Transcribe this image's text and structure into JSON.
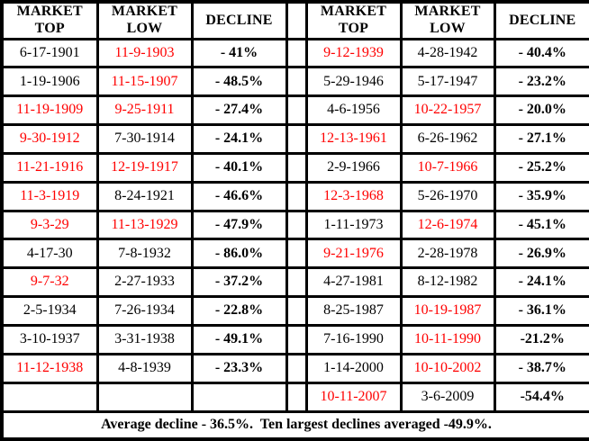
{
  "table": {
    "headers": {
      "market_top": "MARKET\nTOP",
      "market_low": "MARKET\nLOW",
      "decline": "DECLINE"
    },
    "rows": [
      {
        "cells": [
          {
            "text": "6-17-1901",
            "red": false
          },
          {
            "text": "11-9-1903",
            "red": true
          },
          {
            "text": "- 41%",
            "red": false
          },
          {
            "text": "9-12-1939",
            "red": true
          },
          {
            "text": "4-28-1942",
            "red": false
          },
          {
            "text": "- 40.4%",
            "red": false
          }
        ]
      },
      {
        "cells": [
          {
            "text": "1-19-1906",
            "red": false
          },
          {
            "text": "11-15-1907",
            "red": true
          },
          {
            "text": "- 48.5%",
            "red": false
          },
          {
            "text": "5-29-1946",
            "red": false
          },
          {
            "text": "5-17-1947",
            "red": false
          },
          {
            "text": "- 23.2%",
            "red": false
          }
        ]
      },
      {
        "cells": [
          {
            "text": "11-19-1909",
            "red": true
          },
          {
            "text": "9-25-1911",
            "red": true
          },
          {
            "text": "- 27.4%",
            "red": false
          },
          {
            "text": "4-6-1956",
            "red": false
          },
          {
            "text": "10-22-1957",
            "red": true
          },
          {
            "text": "- 20.0%",
            "red": false
          }
        ]
      },
      {
        "cells": [
          {
            "text": "9-30-1912",
            "red": true
          },
          {
            "text": "7-30-1914",
            "red": false
          },
          {
            "text": "- 24.1%",
            "red": false
          },
          {
            "text": "12-13-1961",
            "red": true
          },
          {
            "text": "6-26-1962",
            "red": false
          },
          {
            "text": "- 27.1%",
            "red": false
          }
        ]
      },
      {
        "cells": [
          {
            "text": "11-21-1916",
            "red": true
          },
          {
            "text": "12-19-1917",
            "red": true
          },
          {
            "text": "- 40.1%",
            "red": false
          },
          {
            "text": "2-9-1966",
            "red": false
          },
          {
            "text": "10-7-1966",
            "red": true
          },
          {
            "text": "- 25.2%",
            "red": false
          }
        ]
      },
      {
        "cells": [
          {
            "text": "11-3-1919",
            "red": true
          },
          {
            "text": "8-24-1921",
            "red": false
          },
          {
            "text": "- 46.6%",
            "red": false
          },
          {
            "text": "12-3-1968",
            "red": true
          },
          {
            "text": "5-26-1970",
            "red": false
          },
          {
            "text": "- 35.9%",
            "red": false
          }
        ]
      },
      {
        "cells": [
          {
            "text": "9-3-29",
            "red": true
          },
          {
            "text": "11-13-1929",
            "red": true
          },
          {
            "text": "- 47.9%",
            "red": false
          },
          {
            "text": "1-11-1973",
            "red": false
          },
          {
            "text": "12-6-1974",
            "red": true
          },
          {
            "text": "- 45.1%",
            "red": false
          }
        ]
      },
      {
        "cells": [
          {
            "text": "4-17-30",
            "red": false
          },
          {
            "text": "7-8-1932",
            "red": false
          },
          {
            "text": "- 86.0%",
            "red": false
          },
          {
            "text": "9-21-1976",
            "red": true
          },
          {
            "text": "2-28-1978",
            "red": false
          },
          {
            "text": "- 26.9%",
            "red": false
          }
        ]
      },
      {
        "cells": [
          {
            "text": "9-7-32",
            "red": true
          },
          {
            "text": "2-27-1933",
            "red": false
          },
          {
            "text": "- 37.2%",
            "red": false
          },
          {
            "text": "4-27-1981",
            "red": false
          },
          {
            "text": "8-12-1982",
            "red": false
          },
          {
            "text": "- 24.1%",
            "red": false
          }
        ]
      },
      {
        "cells": [
          {
            "text": "2-5-1934",
            "red": false
          },
          {
            "text": "7-26-1934",
            "red": false
          },
          {
            "text": "- 22.8%",
            "red": false
          },
          {
            "text": "8-25-1987",
            "red": false
          },
          {
            "text": "10-19-1987",
            "red": true
          },
          {
            "text": "- 36.1%",
            "red": false
          }
        ]
      },
      {
        "cells": [
          {
            "text": "3-10-1937",
            "red": false
          },
          {
            "text": "3-31-1938",
            "red": false
          },
          {
            "text": "- 49.1%",
            "red": false
          },
          {
            "text": "7-16-1990",
            "red": false
          },
          {
            "text": "10-11-1990",
            "red": true
          },
          {
            "text": "-21.2%",
            "red": false
          }
        ]
      },
      {
        "cells": [
          {
            "text": "11-12-1938",
            "red": true
          },
          {
            "text": "4-8-1939",
            "red": false
          },
          {
            "text": "- 23.3%",
            "red": false
          },
          {
            "text": "1-14-2000",
            "red": false
          },
          {
            "text": "10-10-2002",
            "red": true
          },
          {
            "text": "- 38.7%",
            "red": false
          }
        ]
      },
      {
        "cells": [
          {
            "text": "",
            "red": false
          },
          {
            "text": "",
            "red": false
          },
          {
            "text": "",
            "red": false
          },
          {
            "text": "10-11-2007",
            "red": true
          },
          {
            "text": "3-6-2009",
            "red": false
          },
          {
            "text": "-54.4%",
            "red": false
          }
        ]
      }
    ],
    "footer": "Average decline - 36.5%.  Ten largest declines averaged -49.9%."
  },
  "colors": {
    "highlight_red": "#ff0000",
    "text": "#000000",
    "border": "#000000",
    "background": "#ffffff"
  }
}
